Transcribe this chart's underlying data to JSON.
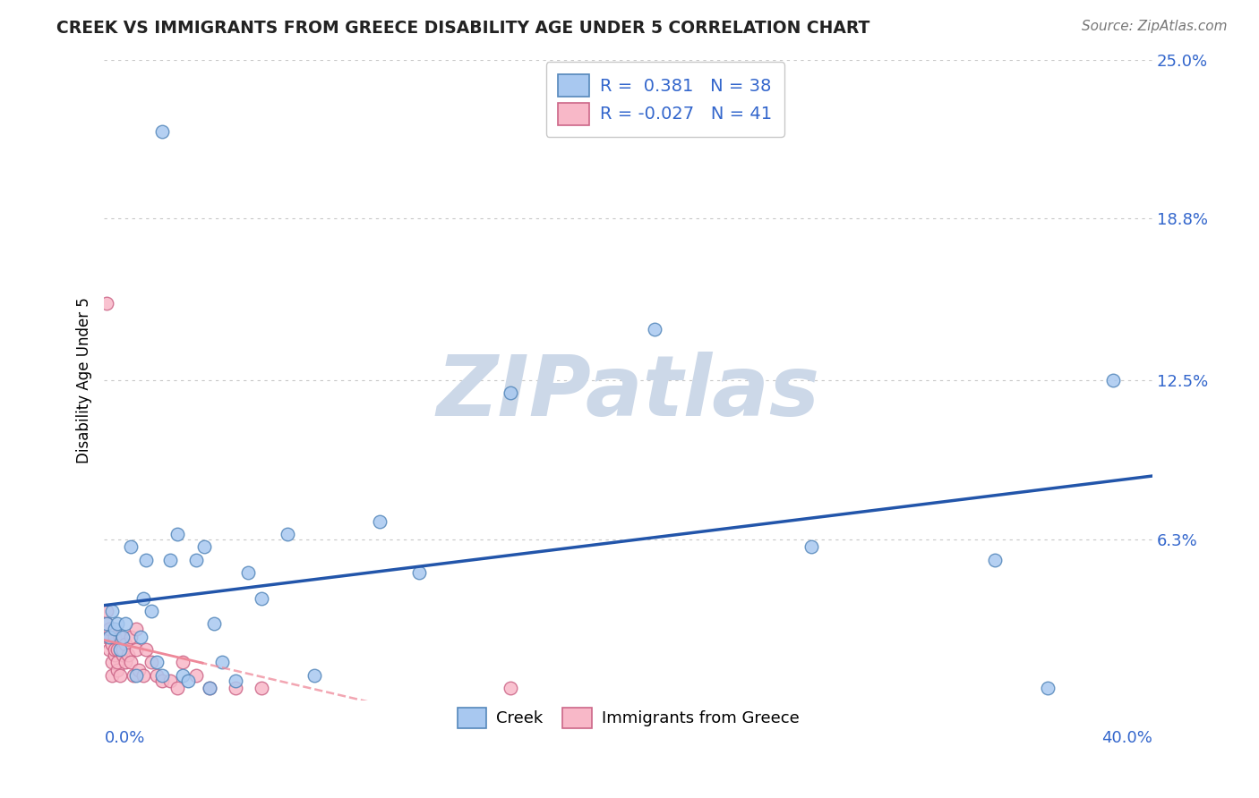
{
  "title": "CREEK VS IMMIGRANTS FROM GREECE DISABILITY AGE UNDER 5 CORRELATION CHART",
  "source": "Source: ZipAtlas.com",
  "ylabel": "Disability Age Under 5",
  "xlabel": "",
  "xlim": [
    0.0,
    0.4
  ],
  "ylim": [
    0.0,
    0.25
  ],
  "ytick_labels": [
    "25.0%",
    "18.8%",
    "12.5%",
    "6.3%"
  ],
  "ytick_vals": [
    0.25,
    0.188,
    0.125,
    0.063
  ],
  "grid_color": "#c8c8c8",
  "background_color": "#ffffff",
  "creek_color": "#a8c8f0",
  "creek_edge_color": "#5588bb",
  "greece_color": "#f8b8c8",
  "greece_edge_color": "#cc6688",
  "creek_line_color": "#2255aa",
  "greece_line_color": "#ee8899",
  "legend_R1": "0.381",
  "legend_N1": "38",
  "legend_R2": "-0.027",
  "legend_N2": "41",
  "creek_x": [
    0.001,
    0.002,
    0.003,
    0.004,
    0.005,
    0.006,
    0.007,
    0.008,
    0.01,
    0.012,
    0.014,
    0.015,
    0.016,
    0.018,
    0.02,
    0.022,
    0.025,
    0.028,
    0.03,
    0.032,
    0.035,
    0.038,
    0.04,
    0.042,
    0.045,
    0.05,
    0.055,
    0.06,
    0.07,
    0.08,
    0.105,
    0.12,
    0.155,
    0.21,
    0.27,
    0.34,
    0.36,
    0.385
  ],
  "creek_y": [
    0.03,
    0.025,
    0.035,
    0.028,
    0.03,
    0.02,
    0.025,
    0.03,
    0.06,
    0.01,
    0.025,
    0.04,
    0.055,
    0.035,
    0.015,
    0.01,
    0.055,
    0.065,
    0.01,
    0.008,
    0.055,
    0.06,
    0.005,
    0.03,
    0.015,
    0.008,
    0.05,
    0.04,
    0.065,
    0.01,
    0.07,
    0.05,
    0.12,
    0.145,
    0.06,
    0.055,
    0.005,
    0.125
  ],
  "greece_x": [
    0.001,
    0.001,
    0.001,
    0.002,
    0.002,
    0.002,
    0.003,
    0.003,
    0.003,
    0.004,
    0.004,
    0.004,
    0.005,
    0.005,
    0.005,
    0.006,
    0.006,
    0.007,
    0.007,
    0.008,
    0.008,
    0.009,
    0.01,
    0.01,
    0.011,
    0.012,
    0.012,
    0.013,
    0.015,
    0.016,
    0.018,
    0.02,
    0.022,
    0.025,
    0.028,
    0.03,
    0.035,
    0.04,
    0.05,
    0.06,
    0.155
  ],
  "greece_y": [
    0.025,
    0.03,
    0.035,
    0.02,
    0.025,
    0.028,
    0.01,
    0.015,
    0.022,
    0.018,
    0.02,
    0.025,
    0.012,
    0.015,
    0.02,
    0.01,
    0.025,
    0.018,
    0.02,
    0.015,
    0.022,
    0.018,
    0.015,
    0.025,
    0.01,
    0.02,
    0.028,
    0.012,
    0.01,
    0.02,
    0.015,
    0.01,
    0.008,
    0.008,
    0.005,
    0.015,
    0.01,
    0.005,
    0.005,
    0.005,
    0.005
  ],
  "greece_outlier_x": [
    0.001
  ],
  "greece_outlier_y": [
    0.155
  ],
  "creek_outlier_x": [
    0.022
  ],
  "creek_outlier_y": [
    0.222
  ],
  "watermark": "ZIPatlas",
  "watermark_color": "#ccd8e8"
}
